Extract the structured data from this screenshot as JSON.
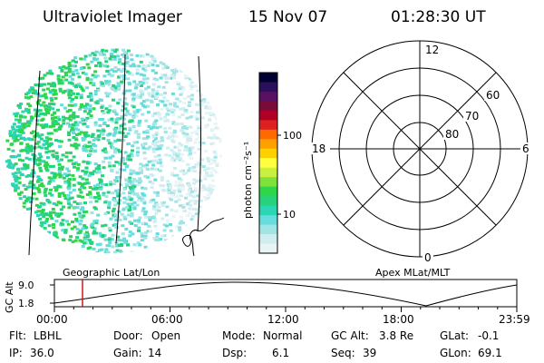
{
  "header": {
    "instrument": "Ultraviolet Imager",
    "date": "15 Nov 07",
    "time": "01:28:30 UT"
  },
  "colorbar": {
    "label": "photon cm⁻²s⁻¹",
    "ticks": [
      "100",
      "10"
    ],
    "colors": [
      "#000033",
      "#2a0f5a",
      "#5a1060",
      "#7a0a3a",
      "#b00028",
      "#dd2020",
      "#ff6a00",
      "#ffa000",
      "#ffd000",
      "#ffff40",
      "#c8f040",
      "#7ee23a",
      "#30d64a",
      "#27d27c",
      "#2ad6b4",
      "#66dcdc",
      "#a0e4e6",
      "#d0eef0",
      "#e8f4f6"
    ]
  },
  "polar_plot": {
    "mlt_labels": {
      "top": "12",
      "right": "6",
      "bottom": "0",
      "left": "18"
    },
    "lat_labels": [
      "60",
      "70",
      "80"
    ]
  },
  "timeline": {
    "left_label": "Geographic Lat/Lon",
    "right_label": "Apex MLat/MLT",
    "axis_label": "GC Alt",
    "y_ticks": [
      "9.0",
      "1.8"
    ],
    "x_ticks": [
      "00:00",
      "06:00",
      "12:00",
      "18:00",
      "23:59"
    ],
    "marker_time": "01:28:30"
  },
  "status": {
    "row1": [
      {
        "label": "Flt:",
        "value": "LBHL"
      },
      {
        "label": "Door:",
        "value": "Open"
      },
      {
        "label": "Mode:",
        "value": "Normal"
      },
      {
        "label": "GC Alt:",
        "value": "3.8 Re"
      },
      {
        "label": "GLat:",
        "value": "-0.1"
      }
    ],
    "row2": [
      {
        "label": "IP:",
        "value": "36.0"
      },
      {
        "label": "Gain:",
        "value": "14"
      },
      {
        "label": "Dsp:",
        "value": "6.1"
      },
      {
        "label": "Seq:",
        "value": "39"
      },
      {
        "label": "GLon:",
        "value": "69.1"
      }
    ]
  }
}
